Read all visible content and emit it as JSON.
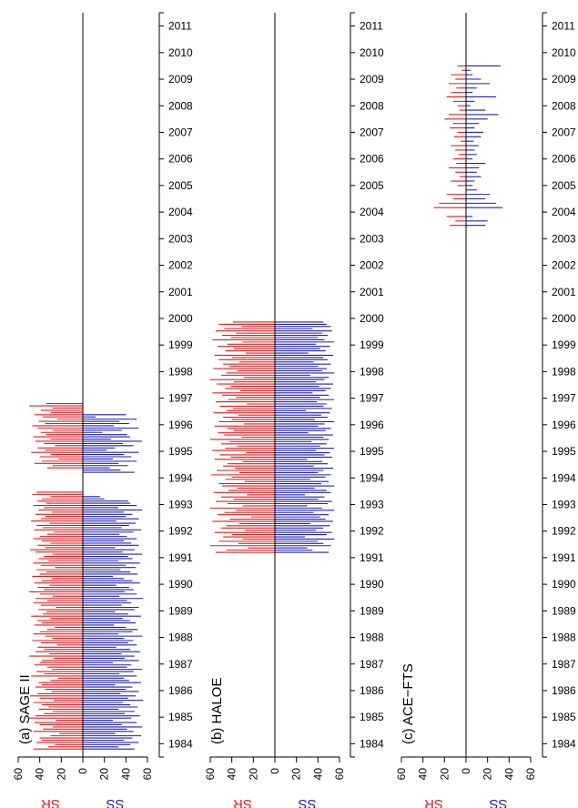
{
  "chart_data": [
    {
      "type": "bar",
      "orientation": "horizontal-diverging",
      "panel_label": "(a) SAGE II",
      "instrument": "SAGE II",
      "x_left_label": "SR",
      "x_right_label": "SS",
      "x_ticks": [
        60,
        40,
        20,
        0,
        20,
        40,
        60
      ],
      "xlim": [
        -60,
        60
      ],
      "y_ticks": [
        "1984",
        "1985",
        "1986",
        "1987",
        "1988",
        "1989",
        "1990",
        "1991",
        "1992",
        "1993",
        "1994",
        "1995",
        "1996",
        "1997",
        "1998",
        "1999",
        "2000",
        "2001",
        "2002",
        "2003",
        "2004",
        "2005",
        "2006",
        "2007",
        "2008",
        "2009",
        "2010",
        "2011"
      ],
      "ylim": [
        1984.0,
        2012.0
      ],
      "series": [
        {
          "name": "SR",
          "color": "#e31a1c",
          "start": 1984.3,
          "step": 0.0833,
          "values": [
            46,
            32,
            26,
            43,
            38,
            40,
            30,
            22,
            46,
            37,
            28,
            40,
            45,
            25,
            50,
            44,
            36,
            28,
            41,
            32,
            38,
            46,
            27,
            40,
            49,
            42,
            29,
            35,
            44,
            38,
            41,
            30,
            23,
            48,
            36,
            43,
            29,
            33,
            45,
            40,
            38,
            27,
            50,
            31,
            44,
            36,
            42,
            24,
            39,
            47,
            28,
            35,
            46,
            40,
            33,
            26,
            45,
            38,
            42,
            30,
            48,
            37,
            34,
            41,
            25,
            39,
            46,
            33,
            44,
            28,
            40,
            50,
            36,
            42,
            31,
            45,
            38,
            29,
            47,
            40,
            34,
            43,
            26,
            39,
            46,
            32,
            41,
            36,
            28,
            44,
            49,
            35,
            42,
            30,
            38,
            46,
            40,
            33,
            27,
            45,
            37,
            43,
            31,
            48,
            39,
            35,
            44,
            29,
            41,
            36,
            46,
            34,
            42,
            38,
            30,
            47,
            43,
            0,
            0,
            0,
            0,
            0,
            0,
            0,
            0,
            0,
            0,
            33,
            28,
            45,
            38,
            23,
            40,
            30,
            48,
            35,
            42,
            26,
            36,
            44,
            30,
            46,
            34,
            39,
            28,
            42,
            47,
            35,
            41,
            24,
            37,
            45,
            30,
            39,
            28,
            50,
            34
          ]
        },
        {
          "name": "SS",
          "color": "#1f1fb4",
          "start": 1984.3,
          "step": 0.0833,
          "values": [
            48,
            33,
            44,
            52,
            38,
            46,
            54,
            30,
            47,
            41,
            55,
            36,
            50,
            28,
            45,
            53,
            39,
            48,
            33,
            51,
            44,
            37,
            56,
            42,
            49,
            35,
            52,
            40,
            46,
            30,
            54,
            43,
            38,
            50,
            34,
            47,
            55,
            41,
            45,
            28,
            52,
            39,
            48,
            36,
            53,
            44,
            31,
            50,
            42,
            47,
            38,
            55,
            33,
            46,
            51,
            40,
            29,
            49,
            44,
            37,
            54,
            42,
            30,
            48,
            52,
            36,
            45,
            41,
            56,
            34,
            50,
            39,
            47,
            43,
            31,
            53,
            46,
            38,
            28,
            51,
            44,
            35,
            49,
            40,
            53,
            33,
            46,
            42,
            55,
            37,
            48,
            30,
            52,
            45,
            38,
            50,
            41,
            34,
            47,
            54,
            36,
            43,
            49,
            31,
            52,
            40,
            46,
            38,
            55,
            33,
            50,
            44,
            42,
            20,
            16,
            0,
            0,
            0,
            0,
            0,
            0,
            0,
            0,
            0,
            0,
            48,
            35,
            25,
            42,
            33,
            50,
            28,
            45,
            38,
            52,
            22,
            30,
            47,
            37,
            55,
            26,
            44,
            41,
            18,
            36,
            52,
            29,
            43,
            34,
            50,
            12,
            40
          ]
        }
      ]
    },
    {
      "type": "bar",
      "orientation": "horizontal-diverging",
      "panel_label": "(b) HALOE",
      "instrument": "HALOE",
      "x_left_label": "SR",
      "x_right_label": "SS",
      "x_ticks": [
        60,
        40,
        20,
        0,
        20,
        40,
        60
      ],
      "xlim": [
        -60,
        60
      ],
      "y_ticks": [
        "1984",
        "1985",
        "1986",
        "1987",
        "1988",
        "1989",
        "1990",
        "1991",
        "1992",
        "1993",
        "1994",
        "1995",
        "1996",
        "1997",
        "1998",
        "1999",
        "2000",
        "2001",
        "2002",
        "2003",
        "2004",
        "2005",
        "2006",
        "2007",
        "2008",
        "2009",
        "2010",
        "2011"
      ],
      "ylim": [
        1984.0,
        2012.0
      ],
      "series": [
        {
          "name": "SR",
          "color": "#e31a1c",
          "start": 1991.7,
          "step": 0.0833,
          "values": [
            55,
            45,
            25,
            60,
            34,
            52,
            30,
            48,
            40,
            56,
            28,
            50,
            45,
            33,
            58,
            42,
            22,
            53,
            47,
            36,
            60,
            30,
            44,
            55,
            38,
            50,
            26,
            57,
            43,
            35,
            49,
            52,
            28,
            46,
            40,
            59,
            33,
            54,
            37,
            48,
            44,
            30,
            56,
            41,
            51,
            27,
            58,
            46,
            35,
            50,
            42,
            60,
            31,
            47,
            53,
            38,
            44,
            56,
            29,
            52,
            40,
            48,
            34,
            57,
            45,
            39,
            51,
            26,
            55,
            43,
            36,
            49,
            58,
            32,
            46,
            41,
            54,
            38,
            60,
            29,
            50,
            45,
            35,
            57,
            42,
            48,
            33,
            52,
            40,
            56,
            27,
            46,
            38,
            53,
            44,
            30,
            58,
            41,
            49,
            36,
            55,
            47,
            31,
            52,
            39
          ]
        },
        {
          "name": "SS",
          "color": "#1f1fb4",
          "start": 1991.7,
          "step": 0.0833,
          "values": [
            50,
            35,
            30,
            52,
            45,
            40,
            55,
            28,
            48,
            53,
            38,
            45,
            51,
            33,
            54,
            47,
            42,
            50,
            36,
            55,
            44,
            30,
            49,
            53,
            40,
            46,
            28,
            52,
            48,
            37,
            55,
            43,
            50,
            33,
            47,
            52,
            40,
            45,
            54,
            36,
            49,
            44,
            30,
            53,
            46,
            51,
            38,
            55,
            42,
            48,
            34,
            50,
            45,
            54,
            31,
            47,
            52,
            40,
            46,
            55,
            37,
            49,
            43,
            51,
            29,
            53,
            45,
            48,
            39,
            55,
            42,
            50,
            35,
            47,
            52,
            41,
            54,
            38,
            46,
            50,
            33,
            55,
            44,
            48,
            40,
            52,
            36,
            49,
            45,
            54,
            31,
            47,
            42,
            51,
            38,
            55,
            46,
            40,
            49,
            44,
            53,
            35,
            52,
            48,
            45
          ]
        }
      ]
    },
    {
      "type": "bar",
      "orientation": "horizontal-diverging",
      "panel_label": "(c) ACE−FTS",
      "instrument": "ACE−FTS",
      "x_left_label": "SR",
      "x_right_label": "SS",
      "x_ticks": [
        60,
        40,
        20,
        0,
        20,
        40,
        60
      ],
      "xlim": [
        -60,
        60
      ],
      "y_ticks": [
        "1984",
        "1985",
        "1986",
        "1987",
        "1988",
        "1989",
        "1990",
        "1991",
        "1992",
        "1993",
        "1994",
        "1995",
        "1996",
        "1997",
        "1998",
        "1999",
        "2000",
        "2001",
        "2002",
        "2003",
        "2004",
        "2005",
        "2006",
        "2007",
        "2008",
        "2009",
        "2010",
        "2011"
      ],
      "ylim": [
        1984.0,
        2012.0
      ],
      "series": [
        {
          "name": "SR",
          "color": "#e31a1c",
          "start": 2004.0,
          "step": 0.1667,
          "values": [
            15,
            10,
            18,
            0,
            30,
            25,
            12,
            18,
            0,
            8,
            14,
            6,
            10,
            16,
            9,
            12,
            7,
            10,
            14,
            5,
            11,
            8,
            15,
            12,
            20,
            16,
            6,
            8,
            12,
            18,
            14,
            9,
            16,
            10,
            14,
            4,
            8
          ]
        },
        {
          "name": "SS",
          "color": "#1f1fb4",
          "start": 2004.0,
          "step": 0.1667,
          "values": [
            18,
            20,
            6,
            0,
            34,
            28,
            18,
            22,
            10,
            6,
            8,
            14,
            10,
            12,
            18,
            6,
            10,
            8,
            12,
            7,
            14,
            16,
            8,
            12,
            20,
            30,
            18,
            4,
            8,
            28,
            6,
            10,
            22,
            14,
            6,
            4,
            32
          ]
        }
      ]
    }
  ]
}
